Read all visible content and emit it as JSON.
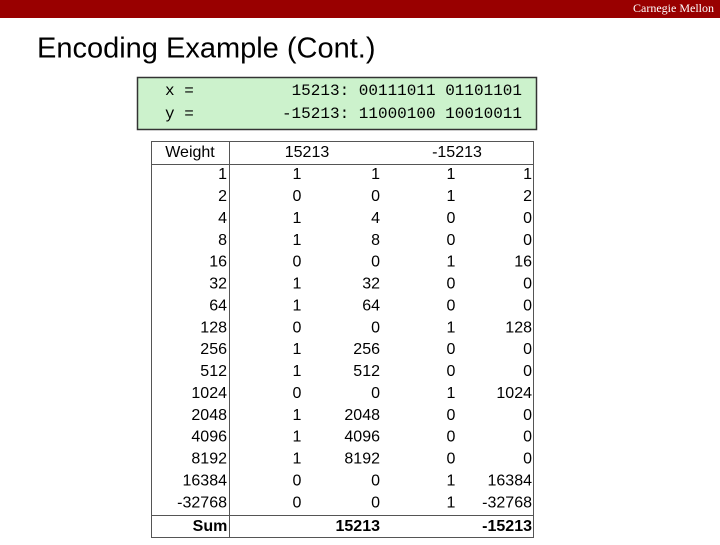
{
  "header": {
    "brand": "Carnegie Mellon",
    "title": "Encoding Example (Cont.)"
  },
  "code": [
    {
      "label": "x =",
      "text": "15213: 00111011 01101101"
    },
    {
      "label": "y =",
      "text": "-15213: 11000100 10010011"
    }
  ],
  "table": {
    "header": [
      "Weight",
      "15213",
      "-15213"
    ],
    "rows": [
      [
        "1",
        "1",
        "1",
        "1",
        "1"
      ],
      [
        "2",
        "0",
        "0",
        "1",
        "2"
      ],
      [
        "4",
        "1",
        "4",
        "0",
        "0"
      ],
      [
        "8",
        "1",
        "8",
        "0",
        "0"
      ],
      [
        "16",
        "0",
        "0",
        "1",
        "16"
      ],
      [
        "32",
        "1",
        "32",
        "0",
        "0"
      ],
      [
        "64",
        "1",
        "64",
        "0",
        "0"
      ],
      [
        "128",
        "0",
        "0",
        "1",
        "128"
      ],
      [
        "256",
        "1",
        "256",
        "0",
        "0"
      ],
      [
        "512",
        "1",
        "512",
        "0",
        "0"
      ],
      [
        "1024",
        "0",
        "0",
        "1",
        "1024"
      ],
      [
        "2048",
        "1",
        "2048",
        "0",
        "0"
      ],
      [
        "4096",
        "1",
        "4096",
        "0",
        "0"
      ],
      [
        "8192",
        "1",
        "8192",
        "0",
        "0"
      ],
      [
        "16384",
        "0",
        "0",
        "1",
        "16384"
      ],
      [
        "-32768",
        "0",
        "0",
        "1",
        "-32768"
      ]
    ],
    "sum": [
      "Sum",
      "15213",
      "-15213"
    ]
  }
}
